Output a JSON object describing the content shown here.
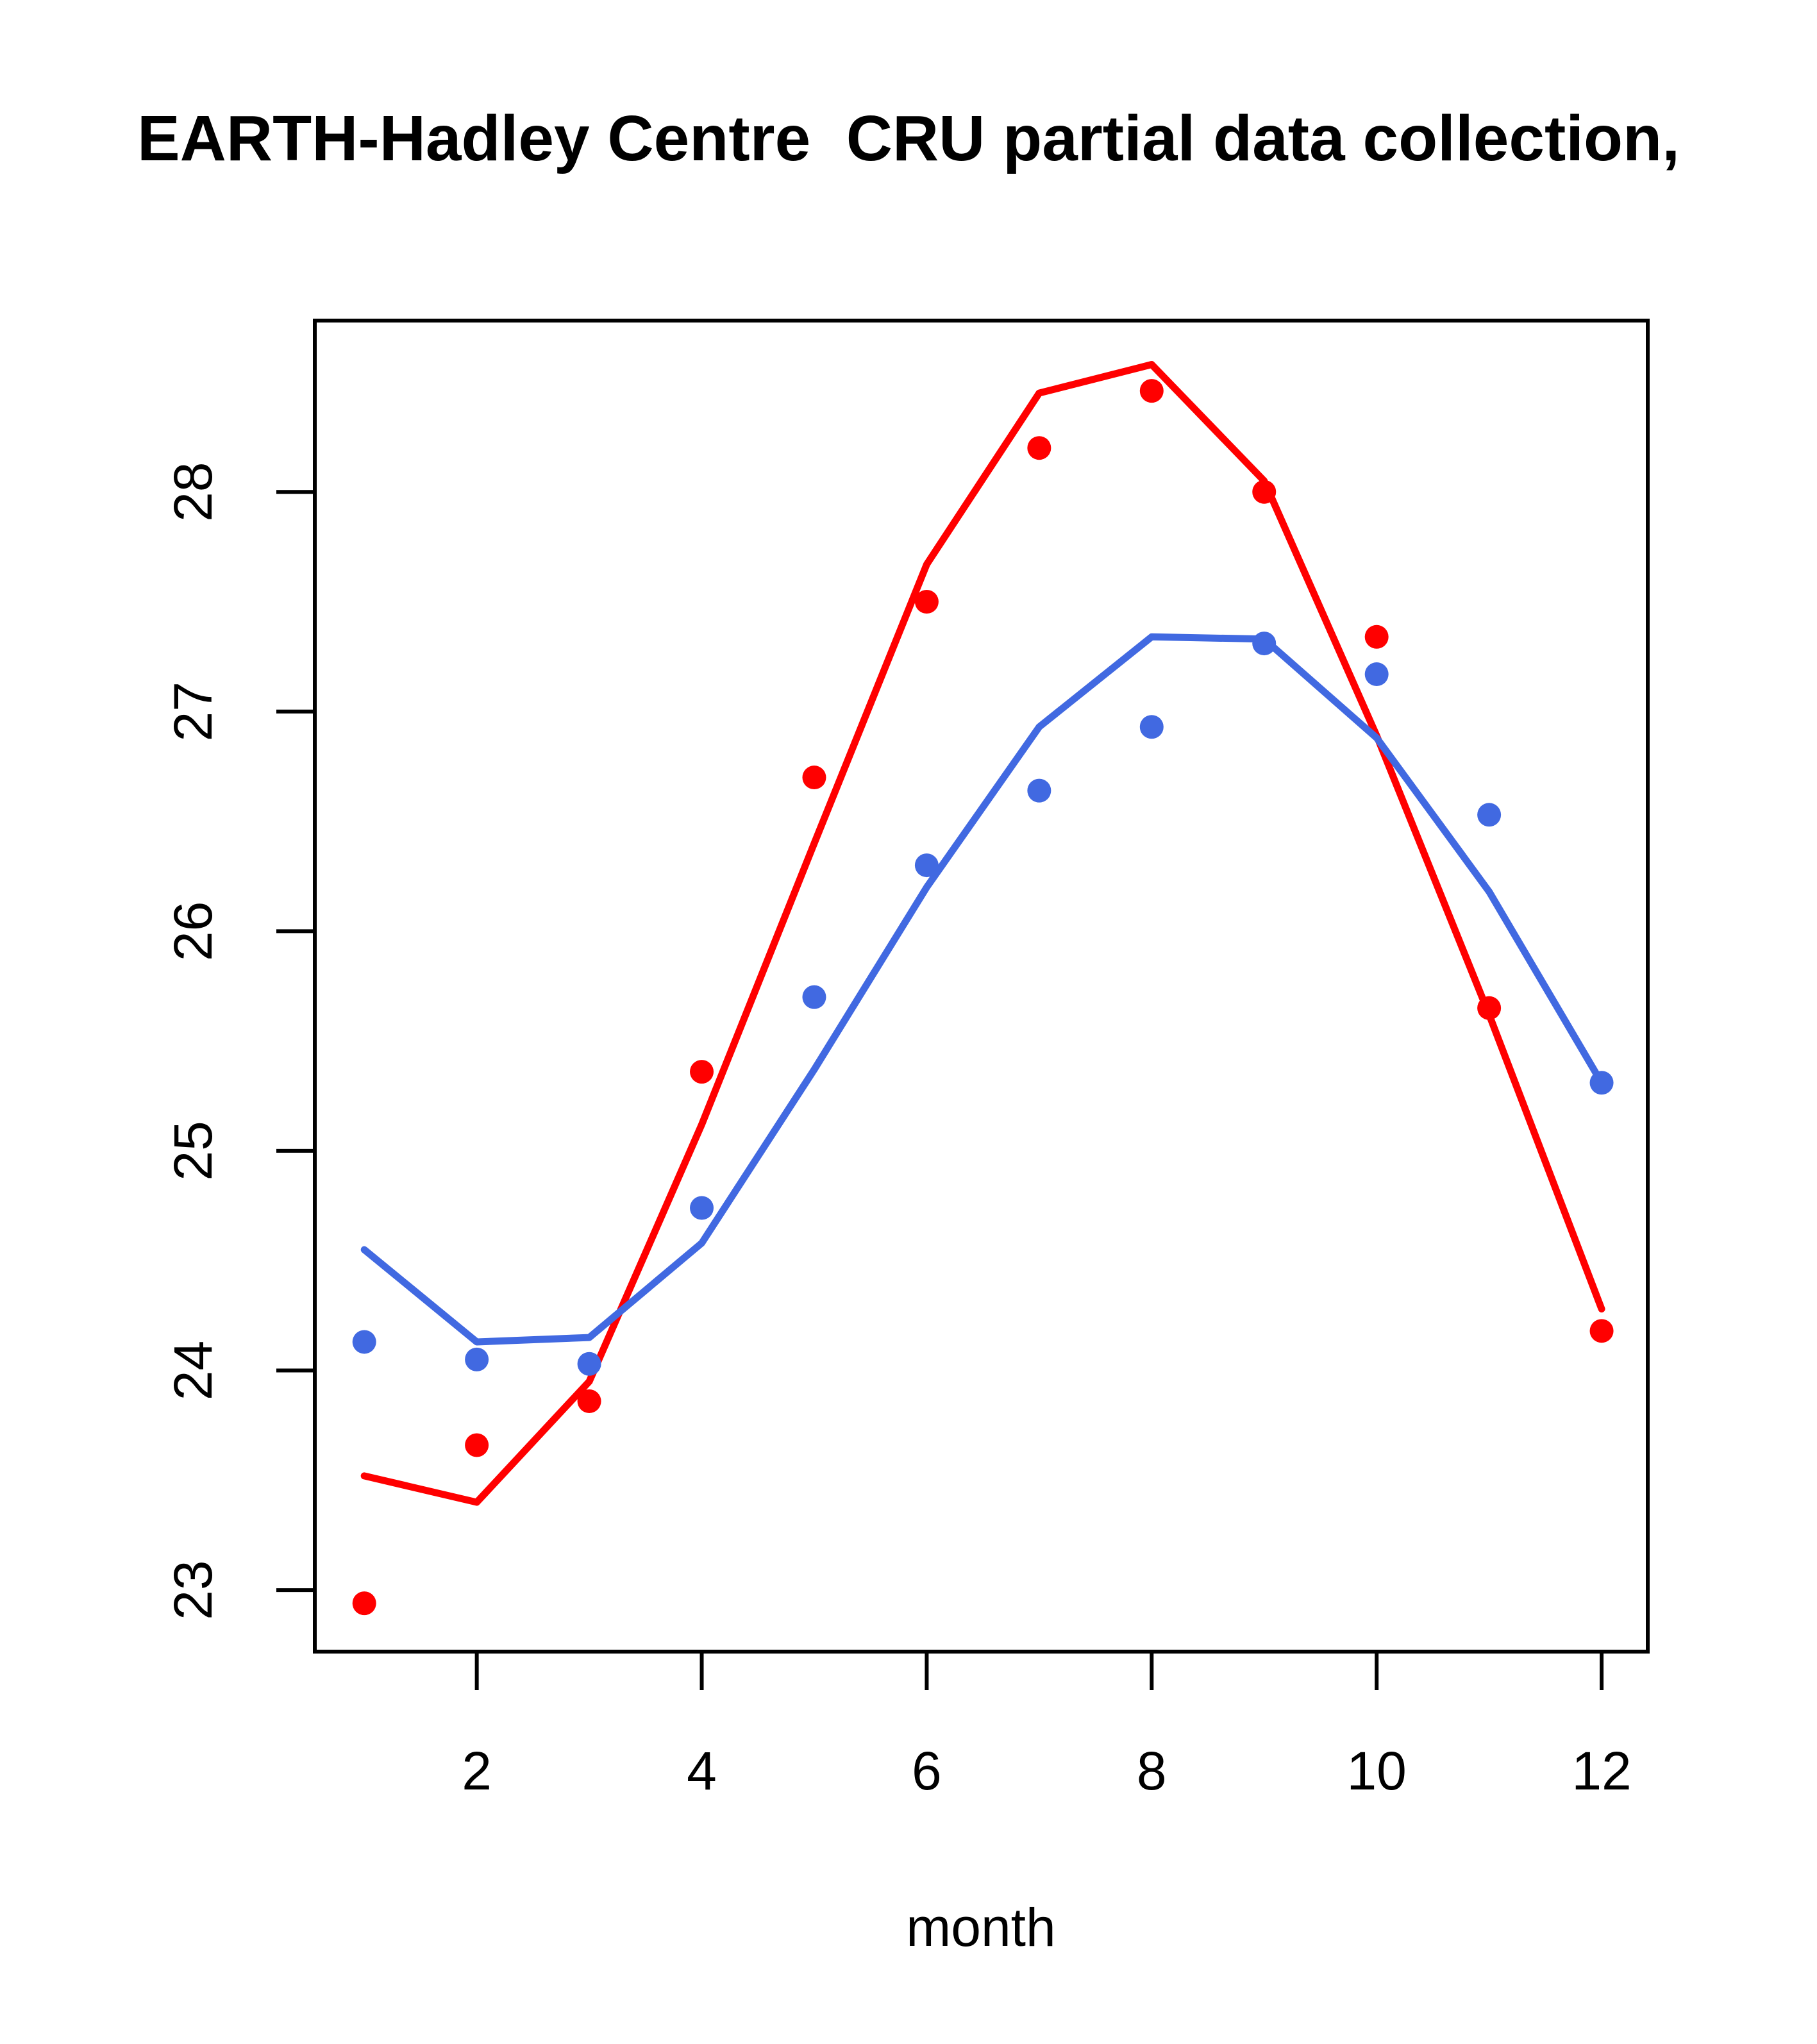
{
  "page": {
    "background": "#FFFFFF",
    "foreground": "#000000"
  },
  "chart_data": {
    "type": "line",
    "title": "EARTH-Hadley Centre  CRU partial data collection,",
    "subtitle": "",
    "xlabel": "month",
    "ylabel": "",
    "grid": false,
    "legend": null,
    "x": [
      1,
      2,
      3,
      4,
      5,
      6,
      7,
      8,
      9,
      10,
      11,
      12
    ],
    "x_ticks": [
      2,
      4,
      6,
      8,
      10,
      12
    ],
    "y_ticks": [
      23,
      24,
      25,
      26,
      27,
      28
    ],
    "xlim": [
      0.56,
      12.41
    ],
    "ylim": [
      22.72,
      28.78
    ],
    "colors": {
      "red_series": "#FF0000",
      "blue_series": "#4169E1"
    },
    "series": [
      {
        "name": "red-fit-line",
        "color": "#FF0000",
        "draw": "line",
        "values": [
          23.52,
          23.4,
          23.95,
          25.12,
          26.4,
          27.67,
          28.45,
          28.58,
          28.05,
          26.89,
          25.62,
          24.28
        ]
      },
      {
        "name": "blue-fit-line",
        "color": "#4169E1",
        "draw": "line",
        "values": [
          24.55,
          24.13,
          24.15,
          24.58,
          25.37,
          26.2,
          26.93,
          27.34,
          27.33,
          26.88,
          26.18,
          25.31
        ]
      },
      {
        "name": "red-observations",
        "color": "#FF0000",
        "draw": "points",
        "values": [
          22.94,
          23.66,
          23.86,
          25.36,
          26.7,
          27.5,
          28.2,
          28.46,
          28.0,
          27.34,
          25.65,
          24.18
        ]
      },
      {
        "name": "blue-observations",
        "color": "#4169E1",
        "draw": "points",
        "values": [
          24.13,
          24.05,
          24.03,
          24.74,
          25.7,
          26.3,
          26.64,
          26.93,
          27.31,
          27.17,
          26.53,
          25.31
        ]
      }
    ]
  }
}
